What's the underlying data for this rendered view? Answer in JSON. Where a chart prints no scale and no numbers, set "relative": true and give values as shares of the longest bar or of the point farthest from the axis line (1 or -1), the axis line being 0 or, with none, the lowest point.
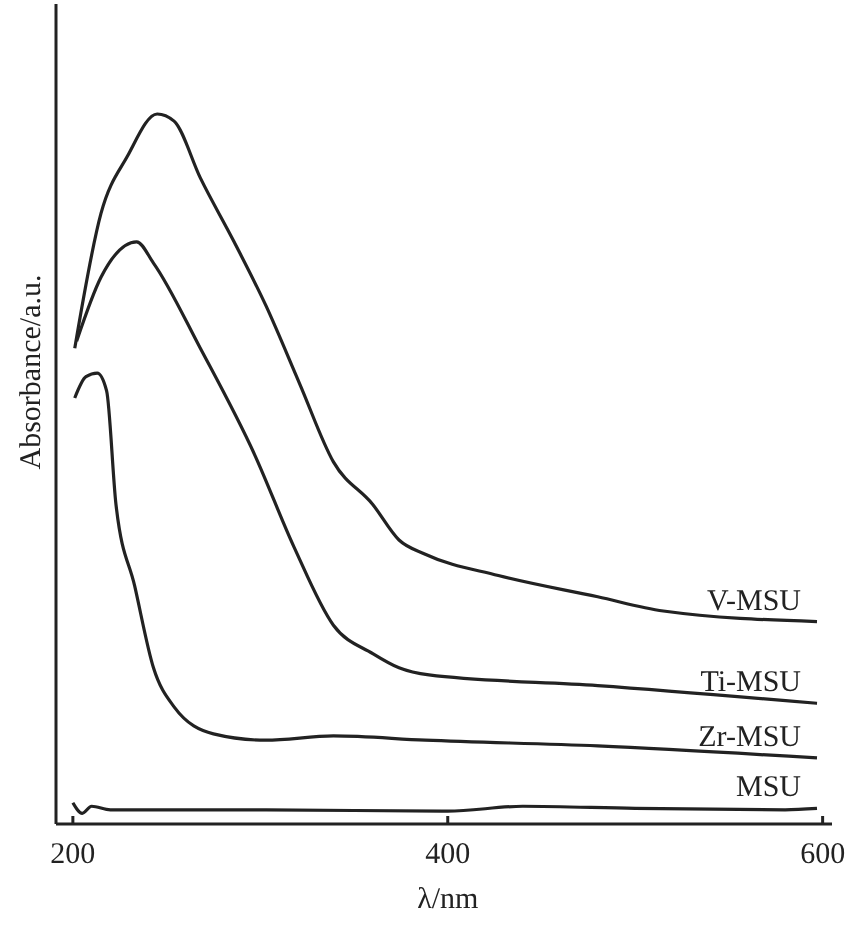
{
  "chart_data": {
    "type": "line",
    "relative": true,
    "xlabel": "λ/nm",
    "ylabel": "Absorbance/a.u.",
    "xlim": [
      191,
      605
    ],
    "xticks": [
      200,
      400,
      600
    ],
    "tick_labels": "x",
    "line_style": "solid",
    "series": [
      {
        "name": "V-MSU",
        "color": "#222222",
        "x": [
          201,
          215,
          229,
          245,
          254,
          268,
          286,
          303,
          321,
          339,
          360,
          374,
          388,
          427,
          480,
          515,
          597
        ],
        "values": [
          0.67,
          0.86,
          0.94,
          1.0,
          0.99,
          0.91,
          0.82,
          0.73,
          0.62,
          0.51,
          0.45,
          0.4,
          0.38,
          0.35,
          0.32,
          0.3,
          0.285
        ]
      },
      {
        "name": "Ti-MSU",
        "color": "#222222",
        "x": [
          202,
          215,
          234,
          243,
          268,
          297,
          318,
          339,
          360,
          374,
          390,
          480,
          597
        ],
        "values": [
          0.68,
          0.77,
          0.82,
          0.79,
          0.67,
          0.52,
          0.39,
          0.28,
          0.24,
          0.22,
          0.21,
          0.195,
          0.17
        ]
      },
      {
        "name": "Zr-MSU",
        "color": "#222222",
        "x": [
          201,
          207,
          213,
          218,
          223,
          233,
          243,
          254,
          275,
          303,
          339,
          388,
          480,
          597
        ],
        "values": [
          0.6,
          0.63,
          0.635,
          0.61,
          0.45,
          0.335,
          0.22,
          0.165,
          0.127,
          0.118,
          0.124,
          0.118,
          0.11,
          0.093
        ]
      },
      {
        "name": "MSU",
        "color": "#222222",
        "x": [
          200,
          205,
          210,
          220,
          300,
          400,
          440,
          500,
          580,
          597
        ],
        "values": [
          0.03,
          0.015,
          0.025,
          0.02,
          0.02,
          0.018,
          0.025,
          0.022,
          0.02,
          0.022
        ]
      }
    ]
  }
}
